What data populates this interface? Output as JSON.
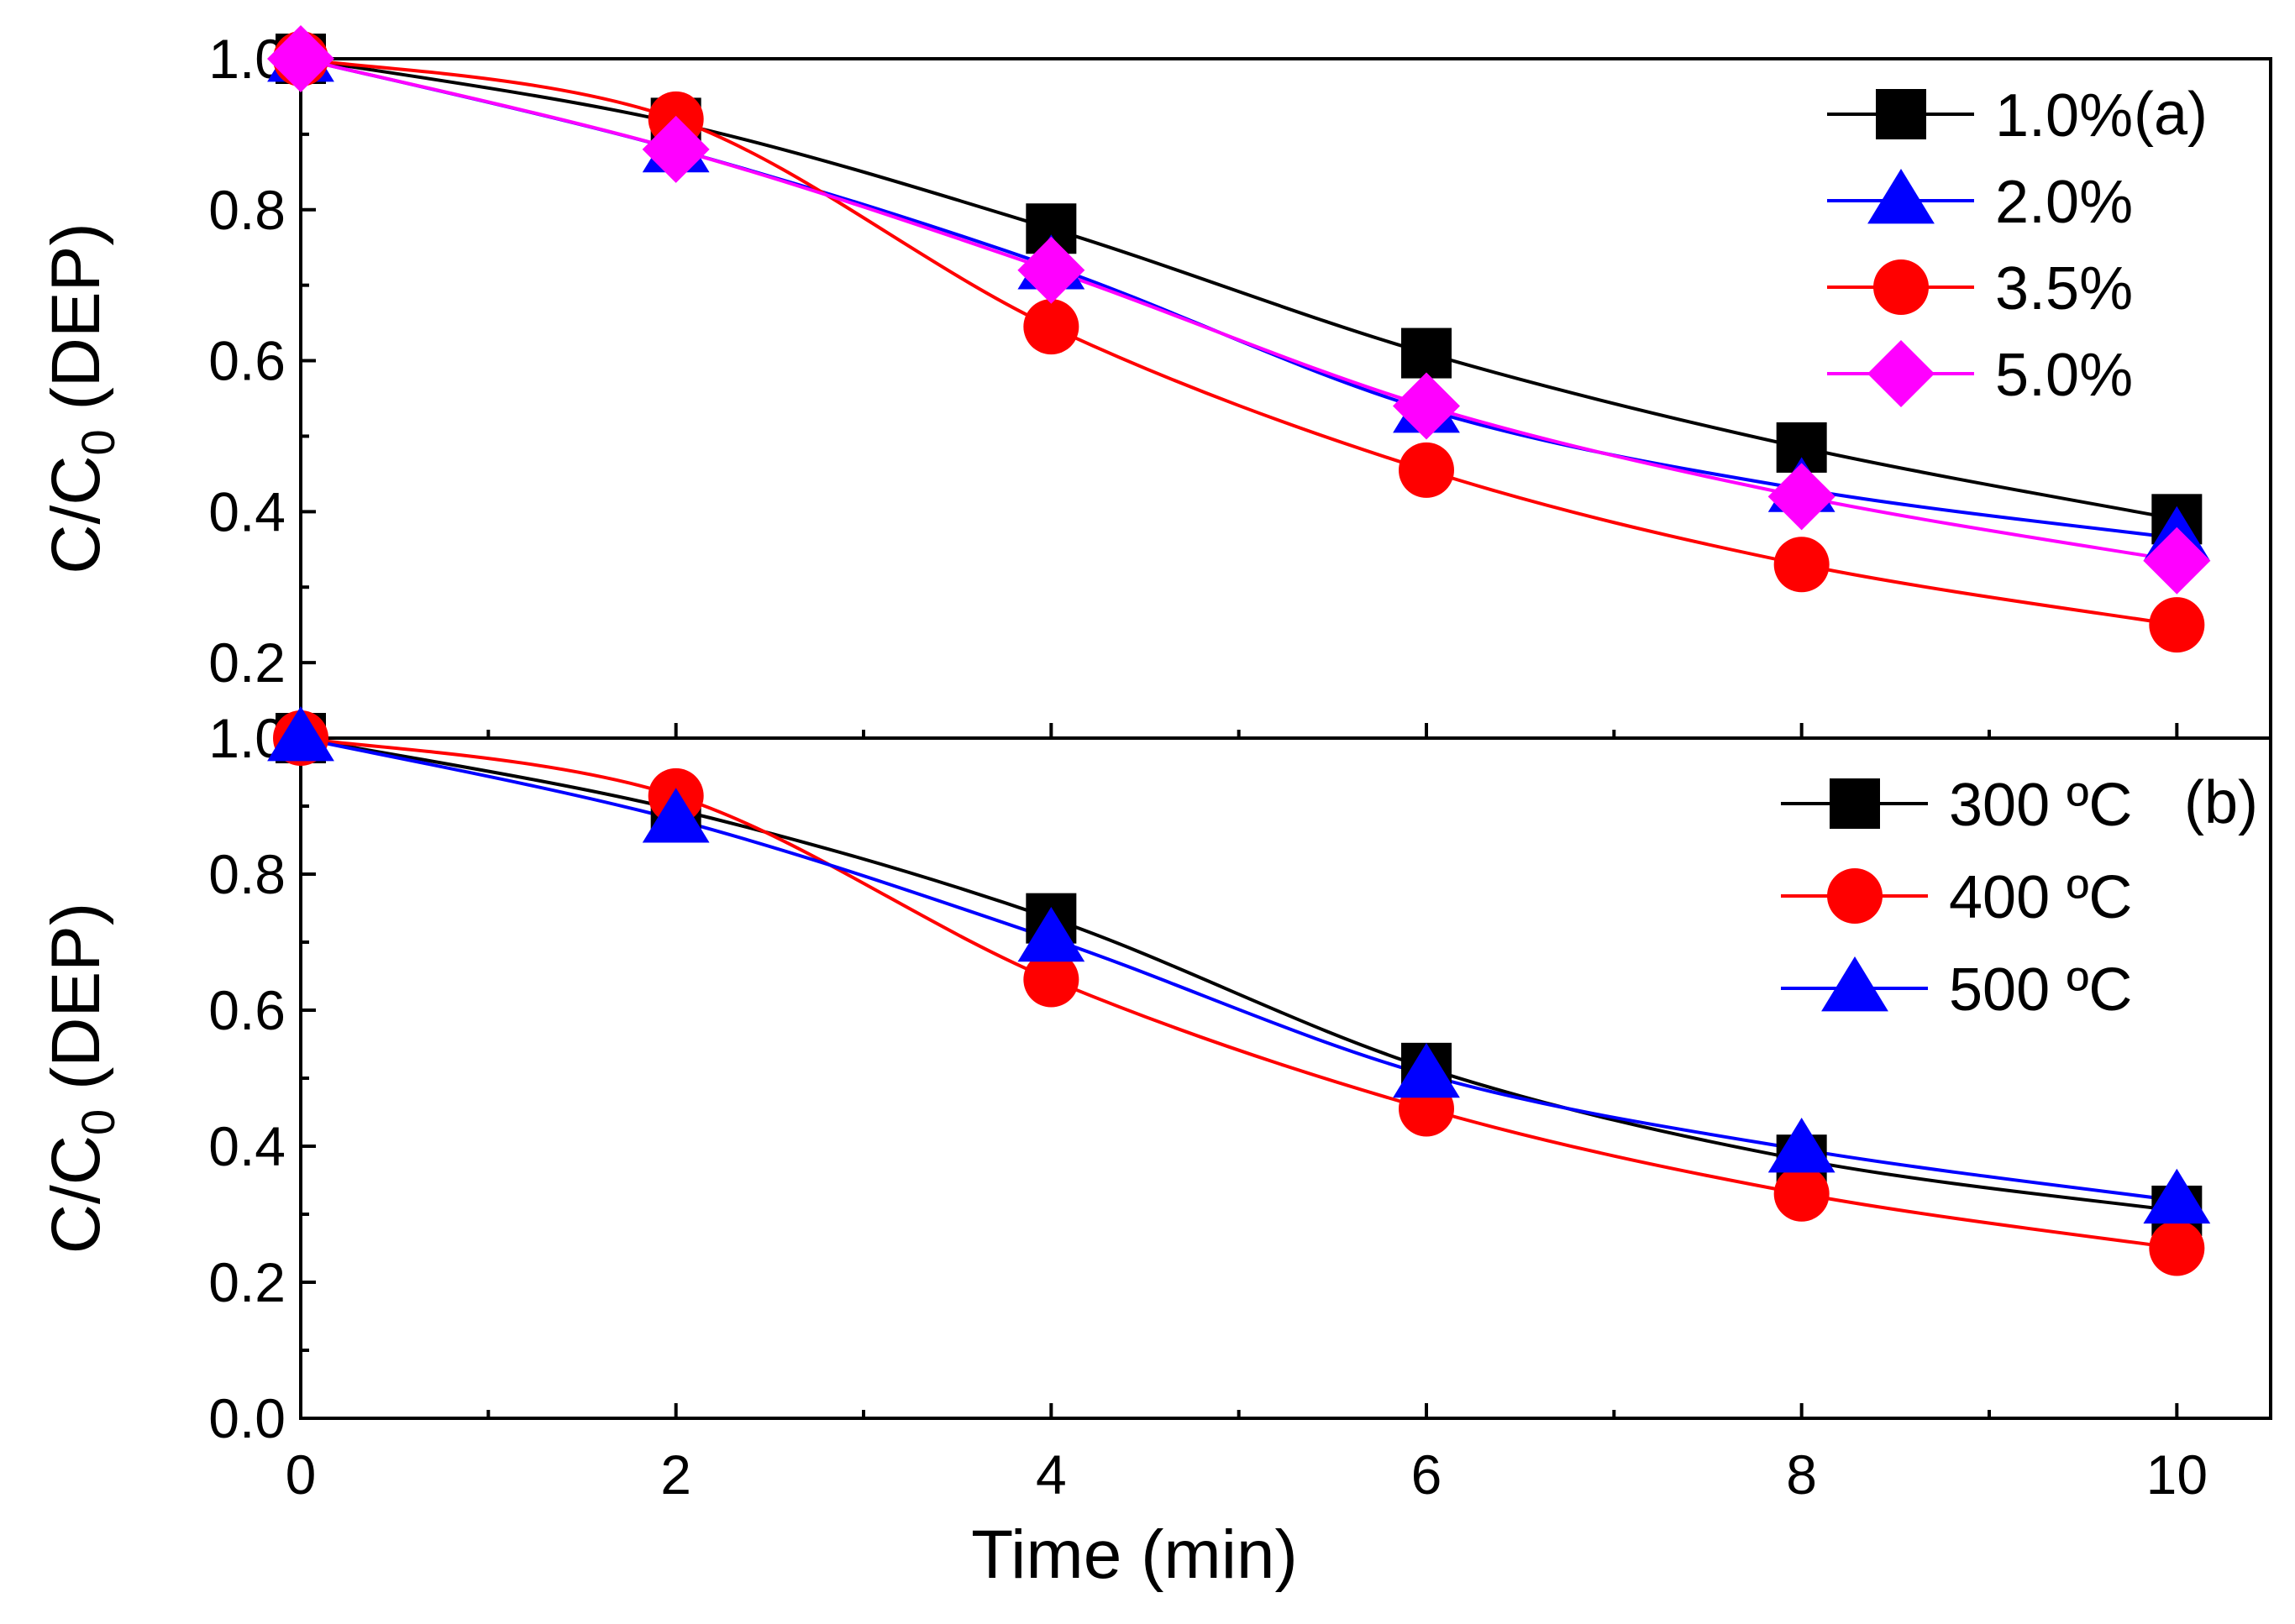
{
  "chart_data": [
    {
      "type": "line",
      "panel_label": "(a)",
      "ylabel": "C/C",
      "ylabel_subscript": "0",
      "ylabel_suffix": " (DEP)",
      "ylim": [
        0.1,
        1.0
      ],
      "yticks": [
        0.2,
        0.4,
        0.6,
        0.8,
        1.0
      ],
      "ytick_labels": [
        "0.2",
        "0.4",
        "0.6",
        "0.8",
        "1.0"
      ],
      "xlim": [
        0,
        10.5
      ],
      "x": [
        0,
        2,
        4,
        6,
        8,
        10
      ],
      "legend_position": "top-right",
      "series": [
        {
          "name": "1.0%",
          "marker": "square",
          "color": "#000000",
          "values": [
            1.0,
            0.915,
            0.775,
            0.61,
            0.485,
            0.39
          ]
        },
        {
          "name": "2.0%",
          "marker": "triangle",
          "color": "#0000ff",
          "values": [
            1.0,
            0.88,
            0.725,
            0.535,
            0.43,
            0.365
          ]
        },
        {
          "name": "3.5%",
          "marker": "circle",
          "color": "#ff0000",
          "values": [
            1.0,
            0.92,
            0.645,
            0.455,
            0.33,
            0.25
          ]
        },
        {
          "name": "5.0%",
          "marker": "diamond",
          "color": "#ff00ff",
          "values": [
            1.0,
            0.88,
            0.72,
            0.54,
            0.42,
            0.335
          ]
        }
      ]
    },
    {
      "type": "line",
      "panel_label": "(b)",
      "ylabel": "C/C",
      "ylabel_subscript": "0",
      "ylabel_suffix": " (DEP)",
      "xlabel": "Time (min)",
      "ylim": [
        0.0,
        1.0
      ],
      "yticks": [
        0.0,
        0.2,
        0.4,
        0.6,
        0.8,
        1.0
      ],
      "ytick_labels": [
        "0.0",
        "0.2",
        "0.4",
        "0.6",
        "0.8",
        "1.0"
      ],
      "xlim": [
        0,
        10.5
      ],
      "x": [
        0,
        2,
        4,
        6,
        8,
        10
      ],
      "xticks": [
        0,
        2,
        4,
        6,
        8,
        10
      ],
      "xtick_labels": [
        "0",
        "2",
        "4",
        "6",
        "8",
        "10"
      ],
      "legend_position": "top-right",
      "series": [
        {
          "name": "300 ºC",
          "marker": "square",
          "color": "#000000",
          "values": [
            1.0,
            0.895,
            0.735,
            0.515,
            0.38,
            0.305
          ]
        },
        {
          "name": "400 ºC",
          "marker": "circle",
          "color": "#ff0000",
          "values": [
            1.0,
            0.915,
            0.645,
            0.455,
            0.33,
            0.25
          ]
        },
        {
          "name": "500 ºC",
          "marker": "triangle",
          "color": "#0000ff",
          "values": [
            1.0,
            0.88,
            0.705,
            0.505,
            0.395,
            0.32
          ]
        }
      ]
    }
  ]
}
